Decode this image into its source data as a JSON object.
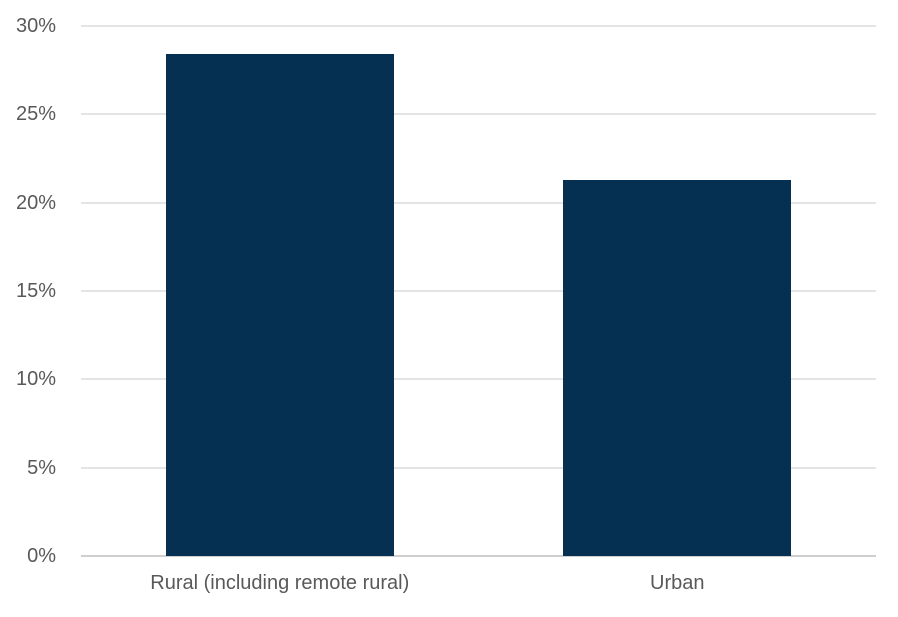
{
  "chart_data": {
    "type": "bar",
    "categories": [
      "Rural (including remote rural)",
      "Urban"
    ],
    "values": [
      28.4,
      21.3
    ],
    "title": "",
    "xlabel": "",
    "ylabel": "",
    "ylim": [
      0,
      30
    ],
    "ytick_step": 5,
    "ytick_labels": [
      "0%",
      "5%",
      "10%",
      "15%",
      "20%",
      "25%",
      "30%"
    ],
    "grid": true,
    "legend": "none",
    "bar_color": "#053052",
    "axis_label_color": "#595959",
    "gridline_color": "#e4e4e4",
    "axis_line_color": "#cfcfcf"
  }
}
